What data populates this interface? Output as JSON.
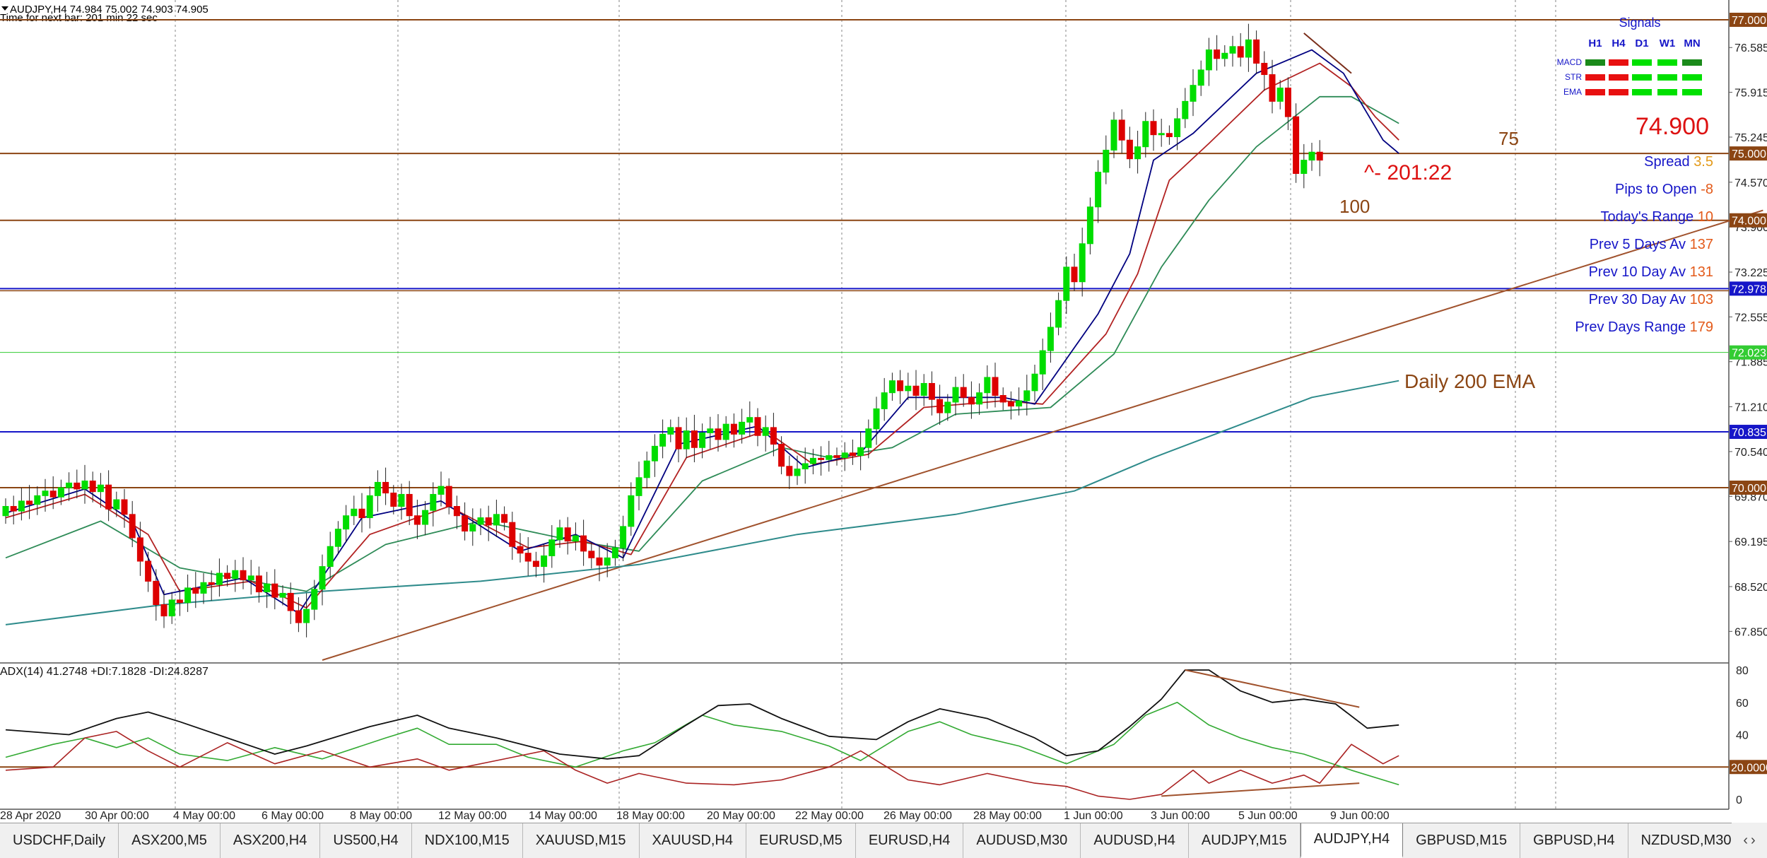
{
  "header": {
    "line1": "AUDJPY,H4  74.984 75.002 74.903 74.905",
    "line2": "Time for next bar: 201 min 22 sec"
  },
  "price_axis": {
    "ticks": [
      "76.585",
      "75.915",
      "75.245",
      "74.570",
      "73.900",
      "73.225",
      "72.555",
      "71.885",
      "71.210",
      "70.540",
      "69.870",
      "69.195",
      "68.520",
      "67.850"
    ],
    "boxes": [
      {
        "value": 77.0,
        "label": "77.000",
        "color": "#8b4513"
      },
      {
        "value": 75.0,
        "label": "75.000",
        "color": "#8b4513"
      },
      {
        "value": 74.0,
        "label": "74.000",
        "color": "#8b4513"
      },
      {
        "value": 72.978,
        "label": "72.978",
        "color": "#1616c8"
      },
      {
        "value": 72.023,
        "label": "72.023",
        "color": "#33cc33"
      },
      {
        "value": 70.835,
        "label": "70.835",
        "color": "#1616c8"
      },
      {
        "value": 70.0,
        "label": "70.000",
        "color": "#8b4513"
      }
    ]
  },
  "x_axis_labels": [
    "28 Apr 2020",
    "30 Apr 00:00",
    "4 May 00:00",
    "6 May 00:00",
    "8 May 00:00",
    "12 May 00:00",
    "14 May 00:00",
    "18 May 00:00",
    "20 May 00:00",
    "22 May 00:00",
    "26 May 00:00",
    "28 May 00:00",
    "1 Jun 00:00",
    "3 Jun 00:00",
    "5 Jun 00:00",
    "9 Jun 00:00"
  ],
  "signals": {
    "title": "Signals",
    "timeframes": [
      "H1",
      "H4",
      "D1",
      "W1",
      "MN"
    ],
    "rows": [
      {
        "name": "MACD",
        "cells": [
          "#1a8a1a",
          "#e81010",
          "#00e000",
          "#00e000",
          "#1a8a1a"
        ]
      },
      {
        "name": "STR",
        "cells": [
          "#e81010",
          "#e81010",
          "#00e000",
          "#00e000",
          "#00e000"
        ]
      },
      {
        "name": "EMA",
        "cells": [
          "#e81010",
          "#e81010",
          "#00e000",
          "#00e000",
          "#00e000"
        ]
      }
    ]
  },
  "info_panel": {
    "price": "74.900",
    "rows": [
      {
        "label": "Spread",
        "value": "3.5"
      },
      {
        "label": "Pips to Open",
        "value": "-8"
      },
      {
        "label": "Today's Range",
        "value": "10"
      },
      {
        "label": "Prev 5 Days Av",
        "value": "137"
      },
      {
        "label": "Prev 10 Day Av",
        "value": "131"
      },
      {
        "label": "Prev 30 Day Av",
        "value": "103"
      },
      {
        "label": "Prev Days Range",
        "value": "179"
      }
    ]
  },
  "annotations": {
    "label_75": "75",
    "label_100": "100",
    "countdown": "^- 201:22",
    "ema_label": "Daily 200 EMA"
  },
  "adx_panel": {
    "title": "ADX(14) 41.2748 +DI:7.1828 -DI:24.8287",
    "ticks": [
      "80",
      "60",
      "40",
      "20",
      "0"
    ],
    "level_box": "20.0000"
  },
  "colors": {
    "bull": "#00dd00",
    "bear": "#dd0000",
    "ema_fast": "#000080",
    "ema_mid": "#b22222",
    "ema_slow": "#2e8b57",
    "ema200": "#2e8b8b",
    "level": "#8b4513",
    "trendline": "#a0522d"
  },
  "chart_data": {
    "type": "candlestick",
    "symbol": "AUDJPY",
    "timeframe": "H4",
    "ylim": [
      67.4,
      77.15
    ],
    "ohlc_open_close": [
      [
        69.58,
        69.72
      ],
      [
        69.72,
        69.65
      ],
      [
        69.65,
        69.8
      ],
      [
        69.8,
        69.75
      ],
      [
        69.75,
        69.88
      ],
      [
        69.88,
        69.95
      ],
      [
        69.95,
        69.86
      ],
      [
        69.86,
        70.0
      ],
      [
        70.0,
        70.07
      ],
      [
        70.07,
        69.98
      ],
      [
        69.98,
        70.1
      ],
      [
        70.1,
        69.94
      ],
      [
        69.94,
        70.04
      ],
      [
        70.04,
        69.68
      ],
      [
        69.68,
        69.82
      ],
      [
        69.82,
        69.6
      ],
      [
        69.6,
        69.25
      ],
      [
        69.25,
        68.9
      ],
      [
        68.9,
        68.6
      ],
      [
        68.6,
        68.25
      ],
      [
        68.25,
        68.08
      ],
      [
        68.08,
        68.32
      ],
      [
        68.32,
        68.28
      ],
      [
        68.28,
        68.5
      ],
      [
        68.5,
        68.42
      ],
      [
        68.42,
        68.58
      ],
      [
        68.58,
        68.55
      ],
      [
        68.55,
        68.72
      ],
      [
        68.72,
        68.64
      ],
      [
        68.64,
        68.76
      ],
      [
        68.76,
        68.62
      ],
      [
        68.62,
        68.68
      ],
      [
        68.68,
        68.44
      ],
      [
        68.44,
        68.56
      ],
      [
        68.56,
        68.36
      ],
      [
        68.36,
        68.42
      ],
      [
        68.42,
        68.16
      ],
      [
        68.16,
        67.98
      ],
      [
        67.98,
        68.18
      ],
      [
        68.18,
        68.48
      ],
      [
        68.48,
        68.82
      ],
      [
        68.82,
        69.12
      ],
      [
        69.12,
        69.38
      ],
      [
        69.38,
        69.58
      ],
      [
        69.58,
        69.68
      ],
      [
        69.68,
        69.55
      ],
      [
        69.55,
        69.88
      ],
      [
        69.88,
        70.08
      ],
      [
        70.08,
        69.92
      ],
      [
        69.92,
        69.72
      ],
      [
        69.72,
        69.9
      ],
      [
        69.9,
        69.58
      ],
      [
        69.58,
        69.45
      ],
      [
        69.45,
        69.66
      ],
      [
        69.66,
        69.9
      ],
      [
        69.9,
        70.02
      ],
      [
        70.02,
        69.72
      ],
      [
        69.72,
        69.58
      ],
      [
        69.58,
        69.35
      ],
      [
        69.35,
        69.45
      ],
      [
        69.45,
        69.55
      ],
      [
        69.55,
        69.44
      ],
      [
        69.44,
        69.6
      ],
      [
        69.6,
        69.48
      ],
      [
        69.48,
        69.12
      ],
      [
        69.12,
        69.02
      ],
      [
        69.02,
        68.9
      ],
      [
        68.9,
        68.82
      ],
      [
        68.82,
        68.98
      ],
      [
        68.98,
        69.22
      ],
      [
        69.22,
        69.4
      ],
      [
        69.4,
        69.2
      ],
      [
        69.2,
        69.28
      ],
      [
        69.28,
        69.05
      ],
      [
        69.05,
        68.95
      ],
      [
        68.95,
        68.84
      ],
      [
        68.84,
        68.95
      ],
      [
        68.95,
        69.1
      ],
      [
        69.1,
        69.42
      ],
      [
        69.42,
        69.88
      ],
      [
        69.88,
        70.15
      ],
      [
        70.15,
        70.4
      ],
      [
        70.4,
        70.62
      ],
      [
        70.62,
        70.8
      ],
      [
        70.8,
        70.9
      ],
      [
        70.9,
        70.58
      ],
      [
        70.58,
        70.85
      ],
      [
        70.85,
        70.6
      ],
      [
        70.6,
        70.82
      ],
      [
        70.82,
        70.88
      ],
      [
        70.88,
        70.72
      ],
      [
        70.72,
        70.95
      ],
      [
        70.95,
        70.8
      ],
      [
        70.8,
        70.98
      ],
      [
        70.98,
        71.05
      ],
      [
        71.05,
        70.78
      ],
      [
        70.78,
        70.9
      ],
      [
        70.9,
        70.65
      ],
      [
        70.65,
        70.32
      ],
      [
        70.32,
        70.18
      ],
      [
        70.18,
        70.28
      ],
      [
        70.28,
        70.36
      ],
      [
        70.36,
        70.44
      ],
      [
        70.44,
        70.42
      ],
      [
        70.42,
        70.48
      ],
      [
        70.48,
        70.45
      ],
      [
        70.45,
        70.52
      ],
      [
        70.52,
        70.48
      ],
      [
        70.48,
        70.6
      ],
      [
        70.6,
        70.88
      ],
      [
        70.88,
        71.18
      ],
      [
        71.18,
        71.42
      ],
      [
        71.42,
        71.6
      ],
      [
        71.6,
        71.45
      ],
      [
        71.45,
        71.52
      ],
      [
        71.52,
        71.38
      ],
      [
        71.38,
        71.56
      ],
      [
        71.56,
        71.32
      ],
      [
        71.32,
        71.12
      ],
      [
        71.12,
        71.28
      ],
      [
        71.28,
        71.5
      ],
      [
        71.5,
        71.35
      ],
      [
        71.35,
        71.25
      ],
      [
        71.25,
        71.42
      ],
      [
        71.42,
        71.65
      ],
      [
        71.65,
        71.38
      ],
      [
        71.38,
        71.28
      ],
      [
        71.28,
        71.22
      ],
      [
        71.22,
        71.3
      ],
      [
        71.3,
        71.45
      ],
      [
        71.45,
        71.7
      ],
      [
        71.7,
        72.05
      ],
      [
        72.05,
        72.4
      ],
      [
        72.4,
        72.8
      ],
      [
        72.8,
        73.3
      ],
      [
        73.3,
        73.08
      ],
      [
        73.08,
        73.65
      ],
      [
        73.65,
        74.2
      ],
      [
        74.2,
        74.72
      ],
      [
        74.72,
        75.05
      ],
      [
        75.05,
        75.5
      ],
      [
        75.5,
        75.2
      ],
      [
        75.2,
        74.92
      ],
      [
        74.92,
        75.1
      ],
      [
        75.1,
        75.48
      ],
      [
        75.48,
        75.28
      ],
      [
        75.28,
        75.3
      ],
      [
        75.3,
        75.25
      ],
      [
        75.25,
        75.52
      ],
      [
        75.52,
        75.78
      ],
      [
        75.78,
        76.02
      ],
      [
        76.02,
        76.25
      ],
      [
        76.25,
        76.55
      ],
      [
        76.55,
        76.42
      ],
      [
        76.42,
        76.5
      ],
      [
        76.5,
        76.6
      ],
      [
        76.6,
        76.44
      ],
      [
        76.44,
        76.7
      ],
      [
        76.7,
        76.35
      ],
      [
        76.35,
        76.18
      ],
      [
        76.18,
        75.78
      ],
      [
        75.78,
        75.98
      ],
      [
        75.98,
        75.55
      ],
      [
        75.55,
        74.7
      ],
      [
        74.7,
        74.9
      ],
      [
        74.9,
        75.02
      ],
      [
        75.02,
        74.9
      ]
    ],
    "ema_fast": [
      [
        0,
        69.62
      ],
      [
        10,
        69.98
      ],
      [
        16,
        69.5
      ],
      [
        20,
        68.4
      ],
      [
        30,
        68.65
      ],
      [
        37,
        68.12
      ],
      [
        45,
        69.55
      ],
      [
        55,
        69.8
      ],
      [
        65,
        69.05
      ],
      [
        72,
        69.3
      ],
      [
        78,
        68.95
      ],
      [
        85,
        70.65
      ],
      [
        95,
        70.92
      ],
      [
        101,
        70.3
      ],
      [
        108,
        70.52
      ],
      [
        114,
        71.35
      ],
      [
        126,
        71.35
      ],
      [
        130,
        71.25
      ],
      [
        138,
        72.6
      ],
      [
        142,
        73.5
      ],
      [
        145,
        74.9
      ],
      [
        150,
        75.3
      ],
      [
        158,
        76.2
      ],
      [
        165,
        76.55
      ],
      [
        169,
        76.2
      ],
      [
        172,
        75.6
      ],
      [
        174,
        75.2
      ],
      [
        176,
        75.0
      ]
    ],
    "ema_mid": [
      [
        0,
        69.55
      ],
      [
        10,
        69.9
      ],
      [
        18,
        69.3
      ],
      [
        22,
        68.45
      ],
      [
        31,
        68.6
      ],
      [
        38,
        68.2
      ],
      [
        46,
        69.3
      ],
      [
        56,
        69.72
      ],
      [
        66,
        69.1
      ],
      [
        73,
        69.2
      ],
      [
        79,
        69.0
      ],
      [
        86,
        70.45
      ],
      [
        96,
        70.85
      ],
      [
        102,
        70.35
      ],
      [
        109,
        70.5
      ],
      [
        116,
        71.2
      ],
      [
        126,
        71.3
      ],
      [
        131,
        71.25
      ],
      [
        139,
        72.3
      ],
      [
        143,
        73.2
      ],
      [
        147,
        74.6
      ],
      [
        152,
        75.15
      ],
      [
        159,
        75.95
      ],
      [
        166,
        76.35
      ],
      [
        170,
        76.0
      ],
      [
        173,
        75.55
      ],
      [
        176,
        75.2
      ]
    ],
    "ema_slow": [
      [
        0,
        68.95
      ],
      [
        12,
        69.5
      ],
      [
        22,
        68.8
      ],
      [
        38,
        68.45
      ],
      [
        48,
        69.15
      ],
      [
        60,
        69.5
      ],
      [
        72,
        69.2
      ],
      [
        80,
        69.05
      ],
      [
        88,
        70.1
      ],
      [
        98,
        70.6
      ],
      [
        104,
        70.45
      ],
      [
        112,
        70.6
      ],
      [
        120,
        71.1
      ],
      [
        132,
        71.2
      ],
      [
        140,
        72.0
      ],
      [
        146,
        73.3
      ],
      [
        152,
        74.3
      ],
      [
        158,
        75.1
      ],
      [
        166,
        75.85
      ],
      [
        170,
        75.85
      ],
      [
        176,
        75.45
      ]
    ],
    "ema200": [
      [
        0,
        67.95
      ],
      [
        20,
        68.25
      ],
      [
        40,
        68.45
      ],
      [
        60,
        68.6
      ],
      [
        80,
        68.85
      ],
      [
        100,
        69.3
      ],
      [
        120,
        69.6
      ],
      [
        135,
        69.95
      ],
      [
        145,
        70.45
      ],
      [
        155,
        70.9
      ],
      [
        165,
        71.35
      ],
      [
        176,
        71.6
      ]
    ],
    "trendline": [
      [
        40,
        67.42
      ],
      [
        222,
        74.15
      ]
    ],
    "adx": [
      [
        0,
        43
      ],
      [
        8,
        40
      ],
      [
        14,
        50
      ],
      [
        18,
        54
      ],
      [
        22,
        48
      ],
      [
        28,
        38
      ],
      [
        34,
        28
      ],
      [
        38,
        33
      ],
      [
        46,
        45
      ],
      [
        52,
        52
      ],
      [
        56,
        44
      ],
      [
        62,
        38
      ],
      [
        70,
        28
      ],
      [
        76,
        25
      ],
      [
        80,
        27
      ],
      [
        86,
        46
      ],
      [
        90,
        58
      ],
      [
        94,
        59
      ],
      [
        98,
        50
      ],
      [
        104,
        39
      ],
      [
        110,
        37
      ],
      [
        114,
        48
      ],
      [
        118,
        56
      ],
      [
        124,
        50
      ],
      [
        130,
        38
      ],
      [
        134,
        27
      ],
      [
        138,
        30
      ],
      [
        142,
        45
      ],
      [
        146,
        62
      ],
      [
        149,
        80
      ],
      [
        152,
        80
      ],
      [
        156,
        67
      ],
      [
        160,
        60
      ],
      [
        164,
        62
      ],
      [
        168,
        59
      ],
      [
        172,
        44
      ],
      [
        176,
        46
      ]
    ],
    "plus_di": [
      [
        0,
        26
      ],
      [
        6,
        34
      ],
      [
        10,
        38
      ],
      [
        14,
        32
      ],
      [
        18,
        38
      ],
      [
        22,
        28
      ],
      [
        28,
        24
      ],
      [
        34,
        32
      ],
      [
        40,
        25
      ],
      [
        48,
        38
      ],
      [
        52,
        44
      ],
      [
        56,
        34
      ],
      [
        62,
        34
      ],
      [
        66,
        26
      ],
      [
        72,
        20
      ],
      [
        78,
        30
      ],
      [
        82,
        35
      ],
      [
        88,
        52
      ],
      [
        92,
        46
      ],
      [
        98,
        42
      ],
      [
        104,
        33
      ],
      [
        108,
        24
      ],
      [
        114,
        42
      ],
      [
        118,
        48
      ],
      [
        122,
        40
      ],
      [
        128,
        33
      ],
      [
        134,
        22
      ],
      [
        140,
        34
      ],
      [
        144,
        52
      ],
      [
        148,
        60
      ],
      [
        152,
        46
      ],
      [
        156,
        38
      ],
      [
        160,
        32
      ],
      [
        164,
        28
      ],
      [
        170,
        18
      ],
      [
        176,
        9
      ]
    ],
    "minus_di": [
      [
        0,
        18
      ],
      [
        6,
        20
      ],
      [
        10,
        38
      ],
      [
        14,
        42
      ],
      [
        18,
        30
      ],
      [
        22,
        20
      ],
      [
        28,
        35
      ],
      [
        34,
        22
      ],
      [
        40,
        30
      ],
      [
        46,
        20
      ],
      [
        52,
        25
      ],
      [
        56,
        18
      ],
      [
        62,
        24
      ],
      [
        68,
        30
      ],
      [
        72,
        18
      ],
      [
        76,
        10
      ],
      [
        80,
        16
      ],
      [
        86,
        10
      ],
      [
        92,
        9
      ],
      [
        98,
        12
      ],
      [
        104,
        20
      ],
      [
        108,
        30
      ],
      [
        114,
        12
      ],
      [
        118,
        9
      ],
      [
        124,
        16
      ],
      [
        130,
        10
      ],
      [
        134,
        8
      ],
      [
        138,
        2
      ],
      [
        142,
        0
      ],
      [
        146,
        3
      ],
      [
        150,
        18
      ],
      [
        152,
        10
      ],
      [
        156,
        18
      ],
      [
        160,
        10
      ],
      [
        164,
        15
      ],
      [
        166,
        10
      ],
      [
        170,
        34
      ],
      [
        174,
        22
      ],
      [
        176,
        27
      ]
    ],
    "adx_trendline": [
      [
        149,
        80
      ],
      [
        171,
        57
      ]
    ],
    "di_trendline": [
      [
        146,
        2
      ],
      [
        171,
        10
      ]
    ],
    "top_trendline": [
      [
        164,
        76.8
      ],
      [
        170,
        76.2
      ]
    ]
  }
}
